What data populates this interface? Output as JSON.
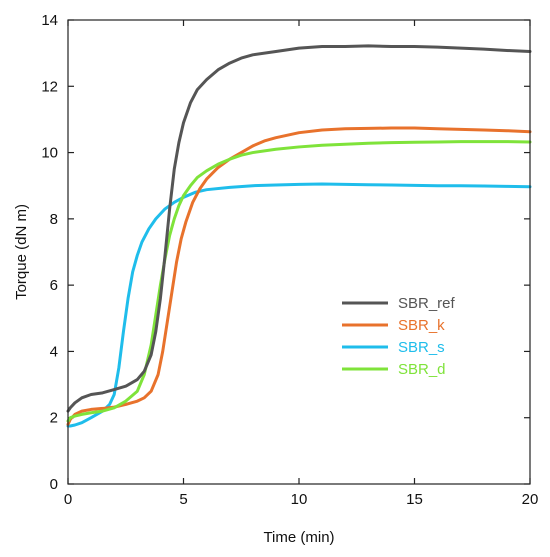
{
  "chart_data": {
    "type": "line",
    "title": "",
    "xlabel": "Time (min)",
    "ylabel": "Torque (dN m)",
    "xlim": [
      0,
      20
    ],
    "ylim": [
      0,
      14
    ],
    "xticks": [
      0,
      5,
      10,
      15,
      20
    ],
    "yticks": [
      0,
      2,
      4,
      6,
      8,
      10,
      12,
      14
    ],
    "grid": false,
    "legend_position": "center-right",
    "series": [
      {
        "name": "SBR_ref",
        "color": "#555555",
        "x": [
          0,
          0.1,
          0.3,
          0.6,
          1.0,
          1.5,
          2.0,
          2.5,
          3.0,
          3.3,
          3.6,
          3.8,
          4.0,
          4.2,
          4.4,
          4.6,
          4.8,
          5.0,
          5.3,
          5.6,
          6.0,
          6.5,
          7.0,
          7.5,
          8.0,
          9.0,
          10.0,
          11.0,
          12.0,
          13.0,
          14.0,
          15.0,
          16.0,
          17.0,
          18.0,
          19.0,
          20.0
        ],
        "y": [
          2.2,
          2.3,
          2.45,
          2.6,
          2.7,
          2.75,
          2.85,
          2.95,
          3.15,
          3.4,
          3.9,
          4.6,
          5.6,
          6.9,
          8.3,
          9.5,
          10.3,
          10.9,
          11.5,
          11.9,
          12.2,
          12.5,
          12.7,
          12.85,
          12.95,
          13.05,
          13.15,
          13.2,
          13.2,
          13.22,
          13.2,
          13.2,
          13.18,
          13.15,
          13.12,
          13.08,
          13.05
        ]
      },
      {
        "name": "SBR_k",
        "color": "#E8722C",
        "x": [
          0,
          0.1,
          0.3,
          0.6,
          1.0,
          1.5,
          2.0,
          2.5,
          3.0,
          3.3,
          3.6,
          3.9,
          4.1,
          4.3,
          4.5,
          4.7,
          4.9,
          5.1,
          5.4,
          5.7,
          6.0,
          6.5,
          7.0,
          7.5,
          8.0,
          8.5,
          9.0,
          10.0,
          11.0,
          12.0,
          13.0,
          14.0,
          15.0,
          16.0,
          17.0,
          18.0,
          19.0,
          20.0
        ],
        "y": [
          1.8,
          1.95,
          2.1,
          2.2,
          2.25,
          2.28,
          2.32,
          2.4,
          2.5,
          2.6,
          2.8,
          3.3,
          4.0,
          4.9,
          5.8,
          6.7,
          7.4,
          7.9,
          8.5,
          8.9,
          9.2,
          9.55,
          9.8,
          10.0,
          10.2,
          10.35,
          10.45,
          10.6,
          10.68,
          10.72,
          10.73,
          10.74,
          10.74,
          10.72,
          10.7,
          10.68,
          10.66,
          10.63
        ]
      },
      {
        "name": "SBR_s",
        "color": "#1FBDEB",
        "x": [
          0,
          0.1,
          0.3,
          0.6,
          1.0,
          1.5,
          1.8,
          2.0,
          2.2,
          2.4,
          2.6,
          2.8,
          3.0,
          3.2,
          3.5,
          3.8,
          4.2,
          4.6,
          5.0,
          5.5,
          6.0,
          7.0,
          8.0,
          9.0,
          10.0,
          11.0,
          12.0,
          13.0,
          14.0,
          15.0,
          16.0,
          17.0,
          18.0,
          19.0,
          20.0
        ],
        "y": [
          1.75,
          1.75,
          1.78,
          1.85,
          2.0,
          2.2,
          2.4,
          2.7,
          3.5,
          4.6,
          5.6,
          6.4,
          6.9,
          7.3,
          7.7,
          8.0,
          8.3,
          8.5,
          8.65,
          8.8,
          8.88,
          8.95,
          9.0,
          9.02,
          9.04,
          9.05,
          9.04,
          9.03,
          9.02,
          9.01,
          9.0,
          9.0,
          8.99,
          8.98,
          8.97
        ]
      },
      {
        "name": "SBR_d",
        "color": "#7FE33A",
        "x": [
          0,
          0.1,
          0.3,
          0.6,
          1.0,
          1.5,
          2.0,
          2.5,
          3.0,
          3.3,
          3.6,
          3.8,
          4.0,
          4.2,
          4.4,
          4.6,
          4.8,
          5.0,
          5.3,
          5.6,
          6.0,
          6.5,
          7.0,
          7.5,
          8.0,
          9.0,
          10.0,
          11.0,
          12.0,
          13.0,
          14.0,
          15.0,
          16.0,
          17.0,
          18.0,
          19.0,
          20.0
        ],
        "y": [
          1.9,
          2.0,
          2.05,
          2.1,
          2.15,
          2.2,
          2.3,
          2.5,
          2.8,
          3.3,
          4.2,
          5.1,
          6.0,
          6.8,
          7.5,
          8.0,
          8.4,
          8.7,
          9.0,
          9.25,
          9.45,
          9.65,
          9.8,
          9.92,
          10.0,
          10.1,
          10.17,
          10.22,
          10.25,
          10.28,
          10.3,
          10.31,
          10.32,
          10.33,
          10.33,
          10.33,
          10.32
        ]
      }
    ]
  }
}
